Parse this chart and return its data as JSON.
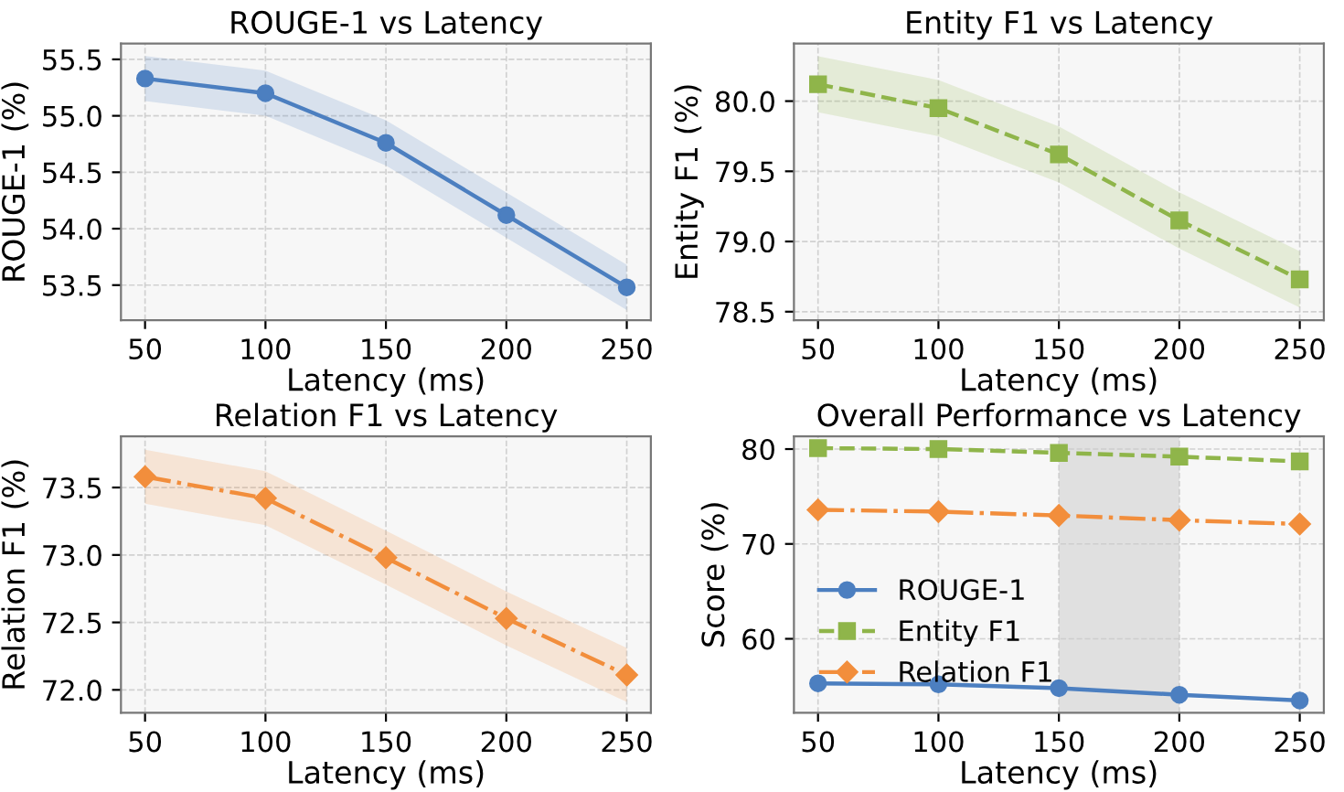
{
  "chart_data": [
    {
      "type": "line",
      "title": "ROUGE-1 vs Latency",
      "xlabel": "Latency (ms)",
      "ylabel": "ROUGE-1 (%)",
      "x": [
        50,
        100,
        150,
        200,
        250
      ],
      "xlim": [
        40,
        260
      ],
      "xticks": [
        50,
        100,
        150,
        200,
        250
      ],
      "ylim": [
        53.19,
        55.64
      ],
      "yticks": [
        {
          "value": 53.5,
          "label": "53.5"
        },
        {
          "value": 54.0,
          "label": "54.0"
        },
        {
          "value": 54.5,
          "label": "54.5"
        },
        {
          "value": 55.0,
          "label": "55.0"
        },
        {
          "value": 55.5,
          "label": "55.5"
        }
      ],
      "grid": true,
      "marker": "circle",
      "line_style": "solid",
      "series": [
        {
          "color": "#4c7fc0",
          "values": [
            55.33,
            55.2,
            54.76,
            54.12,
            53.48
          ],
          "lower": [
            55.13,
            55.0,
            54.56,
            53.92,
            53.28
          ],
          "upper": [
            55.53,
            55.4,
            54.96,
            54.32,
            53.68
          ]
        }
      ]
    },
    {
      "type": "line",
      "title": "Entity F1 vs Latency",
      "xlabel": "Latency (ms)",
      "ylabel": "Entity F1 (%)",
      "x": [
        50,
        100,
        150,
        200,
        250
      ],
      "xlim": [
        40,
        260
      ],
      "xticks": [
        50,
        100,
        150,
        200,
        250
      ],
      "ylim": [
        78.44,
        80.41
      ],
      "yticks": [
        {
          "value": 78.5,
          "label": "78.5"
        },
        {
          "value": 79.0,
          "label": "79.0"
        },
        {
          "value": 79.5,
          "label": "79.5"
        },
        {
          "value": 80.0,
          "label": "80.0"
        }
      ],
      "grid": true,
      "marker": "square",
      "line_style": "dashed",
      "series": [
        {
          "color": "#8fb54a",
          "values": [
            80.12,
            79.95,
            79.62,
            79.15,
            78.73
          ],
          "lower": [
            79.92,
            79.75,
            79.42,
            78.95,
            78.53
          ],
          "upper": [
            80.32,
            80.15,
            79.82,
            79.35,
            78.93
          ]
        }
      ]
    },
    {
      "type": "line",
      "title": "Relation F1 vs Latency",
      "xlabel": "Latency (ms)",
      "ylabel": "Relation F1 (%)",
      "x": [
        50,
        100,
        150,
        200,
        250
      ],
      "xlim": [
        40,
        260
      ],
      "xticks": [
        50,
        100,
        150,
        200,
        250
      ],
      "ylim": [
        71.83,
        73.88
      ],
      "yticks": [
        {
          "value": 72.0,
          "label": "72.0"
        },
        {
          "value": 72.5,
          "label": "72.5"
        },
        {
          "value": 73.0,
          "label": "73.0"
        },
        {
          "value": 73.5,
          "label": "73.5"
        }
      ],
      "grid": true,
      "marker": "diamond",
      "line_style": "dashdot",
      "series": [
        {
          "color": "#f28e3c",
          "values": [
            73.58,
            73.42,
            72.98,
            72.53,
            72.11
          ],
          "lower": [
            73.38,
            73.22,
            72.78,
            72.33,
            71.91
          ],
          "upper": [
            73.78,
            73.62,
            73.18,
            72.73,
            72.31
          ]
        }
      ]
    },
    {
      "type": "line",
      "title": "Overall Performance vs Latency",
      "xlabel": "Latency (ms)",
      "ylabel": "Score (%)",
      "x": [
        50,
        100,
        150,
        200,
        250
      ],
      "xlim": [
        40,
        260
      ],
      "xticks": [
        50,
        100,
        150,
        200,
        250
      ],
      "ylim": [
        52.2,
        81.35
      ],
      "yticks": [
        60,
        70,
        80
      ],
      "grid": true,
      "legend": "lower left",
      "bands": [
        {
          "axis": "x",
          "from": 150,
          "to": 200,
          "color": "#d9d9d9"
        }
      ],
      "series": [
        {
          "name": "ROUGE-1",
          "color": "#4c7fc0",
          "marker": "circle",
          "line_style": "solid",
          "values": [
            55.3,
            55.2,
            54.8,
            54.1,
            53.5
          ]
        },
        {
          "name": "Entity F1",
          "color": "#8fb54a",
          "marker": "square",
          "line_style": "dashed",
          "values": [
            80.1,
            80.0,
            79.6,
            79.2,
            78.7
          ]
        },
        {
          "name": "Relation F1",
          "color": "#f28e3c",
          "marker": "diamond",
          "line_style": "dashdot",
          "values": [
            73.6,
            73.4,
            73.0,
            72.5,
            72.1
          ]
        }
      ]
    }
  ]
}
